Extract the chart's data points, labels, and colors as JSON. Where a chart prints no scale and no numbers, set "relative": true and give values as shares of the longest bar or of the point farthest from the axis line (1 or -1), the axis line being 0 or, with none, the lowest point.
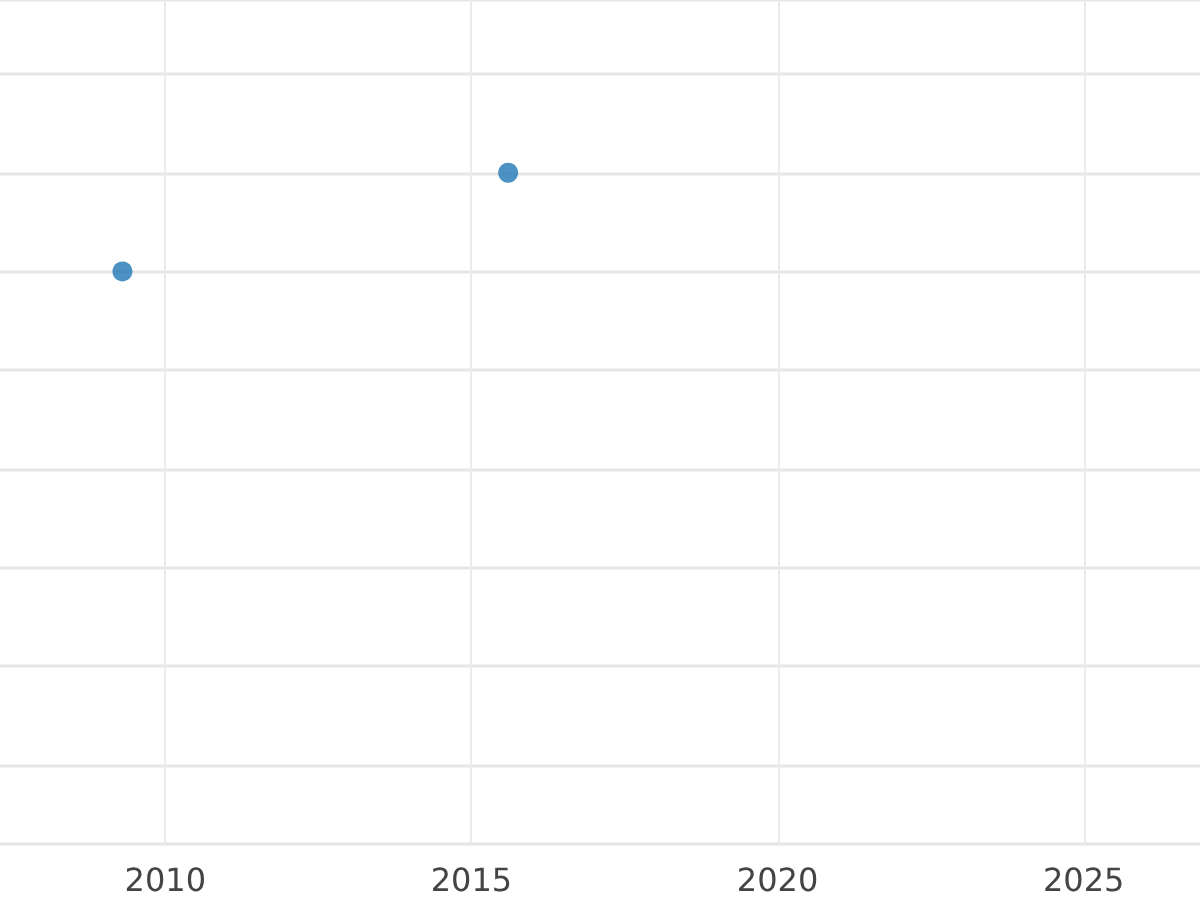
{
  "chart_data": {
    "type": "scatter",
    "relative": true,
    "x": [
      2009.3,
      2015.6
    ],
    "values": [
      0,
      1
    ],
    "color": "#1f77b4",
    "xlim": [
      2007.3,
      2026.9
    ],
    "xticks": [
      2010,
      2015,
      2020,
      2025
    ],
    "grid": true,
    "marker": "circle",
    "tick_labels": "x"
  }
}
